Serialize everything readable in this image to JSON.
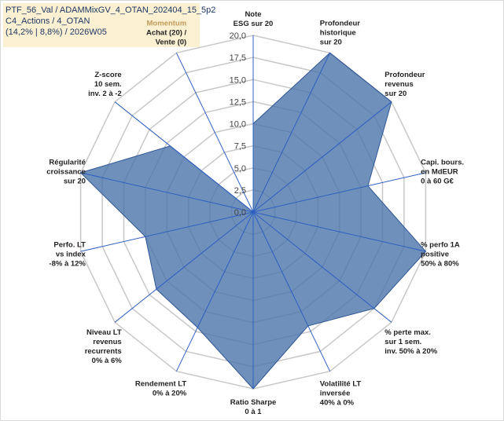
{
  "title_box": {
    "line1": "PTF_56_Val / ADAMMixGV_4_OTAN_202404_15_5p2",
    "line2": "C4_Actions / 4_OTAN",
    "line3": "(14,2% | 8,8%) / 2026W05"
  },
  "chart_data": {
    "type": "radar",
    "rlim": [
      0,
      20
    ],
    "ticks": [
      "0,0",
      "2,5",
      "5,0",
      "7,5",
      "10,0",
      "12,5",
      "15,0",
      "17,5",
      "20,0"
    ],
    "grid": true,
    "fill_color": "#4a74aa",
    "fill_opacity": 0.8,
    "line_color": "#2e5597",
    "axes": [
      {
        "label": [
          "Note",
          "ESG sur 20"
        ],
        "value": 10.0
      },
      {
        "label": [
          "Profondeur",
          "historique",
          "sur 20"
        ],
        "value": 20.0
      },
      {
        "label": [
          "Profondeur",
          "revenus",
          "sur 20"
        ],
        "value": 20.0
      },
      {
        "label": [
          "Capi. bours.",
          "en MdEUR",
          "0 à 60 G€"
        ],
        "value": 13.3
      },
      {
        "label": [
          "% perfo 1A",
          "positive",
          "50% à 80%"
        ],
        "value": 20.0
      },
      {
        "label": [
          "% perte max.",
          "sur 1 sem.",
          "inv. 50% à 20%"
        ],
        "value": 17.5
      },
      {
        "label": [
          "Volatilité LT",
          "inversée",
          "40% à 0%"
        ],
        "value": 14.3
      },
      {
        "label": [
          "Ratio Sharpe",
          "0 à 1"
        ],
        "value": 20.0
      },
      {
        "label": [
          "Rendement LT",
          "0% à 20%"
        ],
        "value": 14.5
      },
      {
        "label": [
          "Niveau LT",
          "revenus",
          "recurrents",
          "0% à 6%"
        ],
        "value": 14.0
      },
      {
        "label": [
          "Perfo. LT",
          "vs index",
          "-8% à 12%"
        ],
        "value": 12.5
      },
      {
        "label": [
          "Régularité",
          "croissance",
          "sur 20"
        ],
        "value": 20.0
      },
      {
        "label": [
          "Z-score",
          "10 sem.",
          "inv. 2 à -2"
        ],
        "value": 12.0
      },
      {
        "label": [
          "Momentum",
          "Achat (20) /",
          "Vente (0)"
        ],
        "value": 0.0
      }
    ],
    "momentum_label_color": "#c09a5a"
  }
}
